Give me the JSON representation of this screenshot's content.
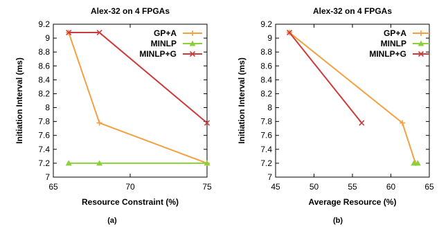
{
  "figure": {
    "captions": [
      "(a)",
      "(b)"
    ]
  },
  "chart_data": [
    {
      "type": "line",
      "title": "Alex-32 on 4 FPGAs",
      "xlabel": "Resource Constraint (%)",
      "ylabel": "Initiation Interval (ms)",
      "xlim": [
        65,
        75
      ],
      "ylim": [
        7,
        9.2
      ],
      "xticks": [
        "65",
        "70",
        "75"
      ],
      "yticks": [
        "7",
        "7.2",
        "7.4",
        "7.6",
        "7.8",
        "8",
        "8.2",
        "8.4",
        "8.6",
        "8.8",
        "9",
        "9.2"
      ],
      "legend_position": "top-right",
      "grid": false,
      "series": [
        {
          "name": "GP+A",
          "color": "#f4a040",
          "marker": "plus",
          "points": [
            [
              66,
              9.08
            ],
            [
              68,
              7.78
            ],
            [
              75,
              7.2
            ]
          ]
        },
        {
          "name": "MINLP",
          "color": "#8ccf3a",
          "marker": "triangle",
          "points": [
            [
              66,
              7.2
            ],
            [
              68,
              7.2
            ],
            [
              75,
              7.2
            ]
          ]
        },
        {
          "name": "MINLP+G",
          "color": "#cc3b3b",
          "marker": "x",
          "points": [
            [
              66,
              9.08
            ],
            [
              68,
              9.08
            ],
            [
              75,
              7.78
            ]
          ]
        }
      ]
    },
    {
      "type": "line",
      "title": "Alex-32 on 4 FPGAs",
      "xlabel": "Average Resource (%)",
      "ylabel": "Initiation Interval (ms)",
      "xlim": [
        45,
        65
      ],
      "ylim": [
        7,
        9.2
      ],
      "xticks": [
        "45",
        "50",
        "55",
        "60",
        "65"
      ],
      "yticks": [
        "7",
        "7.2",
        "7.4",
        "7.6",
        "7.8",
        "8",
        "8.2",
        "8.4",
        "8.6",
        "8.8",
        "9",
        "9.2"
      ],
      "legend_position": "top-right",
      "grid": false,
      "series": [
        {
          "name": "GP+A",
          "color": "#f4a040",
          "marker": "plus",
          "points": [
            [
              46.8,
              9.08
            ],
            [
              61.5,
              7.78
            ],
            [
              63.2,
              7.2
            ]
          ]
        },
        {
          "name": "MINLP",
          "color": "#8ccf3a",
          "marker": "triangle",
          "points": [
            [
              63.0,
              7.2
            ],
            [
              63.5,
              7.2
            ]
          ]
        },
        {
          "name": "MINLP+G",
          "color": "#cc3b3b",
          "marker": "x",
          "points": [
            [
              46.8,
              9.08
            ],
            [
              56.2,
              7.78
            ]
          ]
        }
      ]
    }
  ]
}
